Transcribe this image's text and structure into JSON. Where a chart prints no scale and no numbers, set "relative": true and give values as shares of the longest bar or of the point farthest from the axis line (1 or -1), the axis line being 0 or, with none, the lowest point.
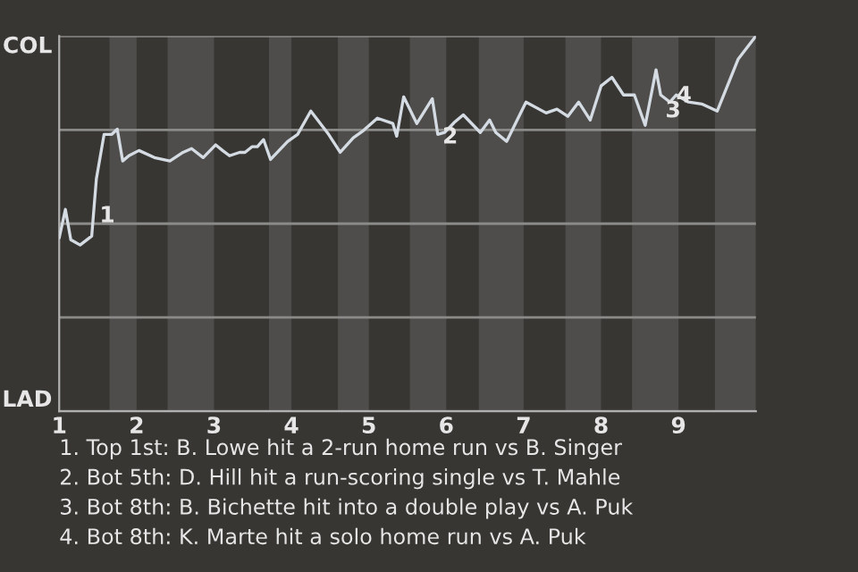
{
  "chart_data": {
    "type": "line",
    "relative": true,
    "x": [
      1.0,
      1.08,
      1.15,
      1.27,
      1.42,
      1.48,
      1.58,
      1.68,
      1.75,
      1.82,
      1.9,
      2.03,
      2.23,
      2.43,
      2.6,
      2.71,
      2.86,
      3.02,
      3.11,
      3.2,
      3.33,
      3.4,
      3.49,
      3.56,
      3.64,
      3.73,
      3.84,
      3.95,
      4.08,
      4.25,
      4.48,
      4.63,
      4.8,
      4.93,
      5.11,
      5.31,
      5.36,
      5.45,
      5.62,
      5.82,
      5.89,
      5.98,
      6.11,
      6.22,
      6.44,
      6.56,
      6.64,
      6.78,
      7.03,
      7.29,
      7.43,
      7.57,
      7.71,
      7.86,
      8.0,
      8.14,
      8.29,
      8.43,
      8.57,
      8.71,
      8.77,
      8.89,
      8.97,
      9.13,
      9.3,
      9.5,
      9.77,
      10.0
    ],
    "series": [
      {
        "color": "#d4dbe2",
        "values": [
          0.462,
          0.538,
          0.457,
          0.443,
          0.467,
          0.619,
          0.738,
          0.738,
          0.752,
          0.667,
          0.681,
          0.695,
          0.676,
          0.667,
          0.69,
          0.7,
          0.676,
          0.71,
          0.695,
          0.681,
          0.69,
          0.69,
          0.705,
          0.705,
          0.724,
          0.671,
          0.695,
          0.719,
          0.738,
          0.8,
          0.738,
          0.69,
          0.729,
          0.748,
          0.781,
          0.767,
          0.733,
          0.838,
          0.767,
          0.833,
          0.738,
          0.743,
          0.771,
          0.79,
          0.743,
          0.776,
          0.743,
          0.719,
          0.824,
          0.795,
          0.805,
          0.786,
          0.824,
          0.776,
          0.867,
          0.89,
          0.843,
          0.843,
          0.762,
          0.91,
          0.843,
          0.824,
          0.843,
          0.824,
          0.819,
          0.8,
          0.938,
          1
        ]
      }
    ],
    "xlim": [
      1,
      10
    ],
    "xticks": [
      1,
      2,
      3,
      4,
      5,
      6,
      7,
      8,
      9
    ],
    "grid": "y",
    "marker": "none",
    "line_style": "solid",
    "bands": [
      {
        "axis": "x",
        "from": 1.65,
        "to": 2,
        "color": "#4e4d4b"
      },
      {
        "axis": "x",
        "from": 2.4,
        "to": 3,
        "color": "#4e4d4b"
      },
      {
        "axis": "x",
        "from": 3.71,
        "to": 4,
        "color": "#4e4d4b"
      },
      {
        "axis": "x",
        "from": 4.6,
        "to": 5,
        "color": "#4e4d4b"
      },
      {
        "axis": "x",
        "from": 5.53,
        "to": 6,
        "color": "#4e4d4b"
      },
      {
        "axis": "x",
        "from": 6.42,
        "to": 7,
        "color": "#4e4d4b"
      },
      {
        "axis": "x",
        "from": 7.54,
        "to": 8,
        "color": "#4e4d4b"
      },
      {
        "axis": "x",
        "from": 8.4,
        "to": 9,
        "color": "#4e4d4b"
      },
      {
        "axis": "x",
        "from": 9.47,
        "to": 10,
        "color": "#4e4d4b"
      }
    ],
    "annotations": [
      "COL",
      "LAD",
      {
        "text": "1",
        "x": 1.52,
        "y": 0.52
      },
      {
        "text": "2",
        "x": 5.95,
        "y": 0.73
      },
      {
        "text": "3",
        "x": 8.83,
        "y": 0.8
      },
      {
        "text": "4",
        "x": 8.97,
        "y": 0.84
      },
      "1. Top 1st: B. Lowe hit a 2-run home run vs B. Singer",
      "2. Bot 5th: D. Hill hit a run-scoring single vs T. Mahle",
      "3. Bot 8th: B. Bichette hit into a double play vs A. Puk",
      "4. Bot 8th: K. Marte hit a solo home run vs A. Puk"
    ]
  }
}
